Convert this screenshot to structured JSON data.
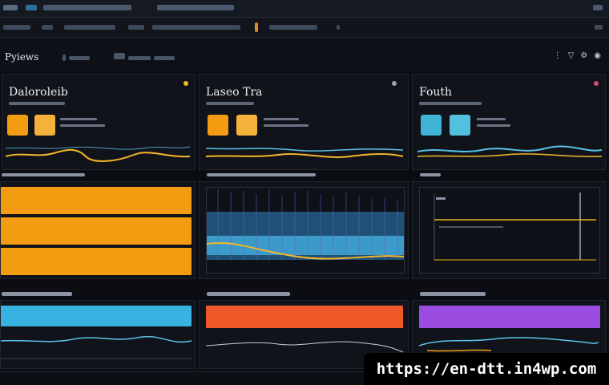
{
  "header": {
    "brand": "Pyiews"
  },
  "cards": [
    {
      "title": "Daloroleib",
      "accent": "#f39c12"
    },
    {
      "title": "Laseo Tra",
      "accent": "#f39c12"
    },
    {
      "title": "Fouth",
      "accent": "#3fb4d6"
    }
  ],
  "colors": {
    "orange": "#f39c12",
    "blue": "#38b2e0",
    "red": "#f0582a",
    "purple": "#9a4de0",
    "yellow": "#e7b416"
  },
  "watermark": "https://en-dtt.in4wp.com"
}
